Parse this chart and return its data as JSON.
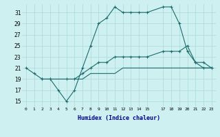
{
  "xlabel": "Humidex (Indice chaleur)",
  "bg_color": "#cff0f0",
  "grid_color": "#a8d8d8",
  "line_color": "#1a6b6b",
  "xlim": [
    -0.5,
    23.5
  ],
  "ylim": [
    14.0,
    32.5
  ],
  "yticks": [
    15,
    17,
    19,
    21,
    23,
    25,
    27,
    29,
    31
  ],
  "xticks": [
    0,
    1,
    2,
    3,
    4,
    5,
    6,
    7,
    8,
    9,
    10,
    11,
    12,
    13,
    14,
    15,
    17,
    18,
    19,
    20,
    21,
    22,
    23
  ],
  "line1_x": [
    0,
    1,
    2,
    3,
    4,
    5,
    6,
    7,
    8,
    9,
    10,
    11,
    12,
    13,
    14,
    15,
    17,
    18,
    19,
    20,
    21,
    22,
    23
  ],
  "line1_y": [
    21,
    20,
    19,
    19,
    17,
    15,
    17,
    21,
    25,
    29,
    30,
    32,
    31,
    31,
    31,
    31,
    32,
    32,
    29,
    24,
    22,
    21,
    21
  ],
  "line2_x": [
    2,
    3,
    5,
    6,
    7,
    8,
    9,
    10,
    11,
    12,
    13,
    14,
    15,
    17,
    18,
    19,
    20,
    21,
    22,
    23
  ],
  "line2_y": [
    19,
    19,
    19,
    19,
    20,
    21,
    22,
    22,
    23,
    23,
    23,
    23,
    23,
    24,
    24,
    24,
    25,
    22,
    22,
    21
  ],
  "line3_x": [
    2,
    3,
    5,
    6,
    7,
    8,
    9,
    10,
    11,
    12,
    13,
    14,
    15,
    17,
    18,
    19,
    20,
    21,
    22,
    23
  ],
  "line3_y": [
    19,
    19,
    19,
    19,
    19,
    20,
    20,
    20,
    20,
    21,
    21,
    21,
    21,
    21,
    21,
    21,
    21,
    21,
    21,
    21
  ]
}
